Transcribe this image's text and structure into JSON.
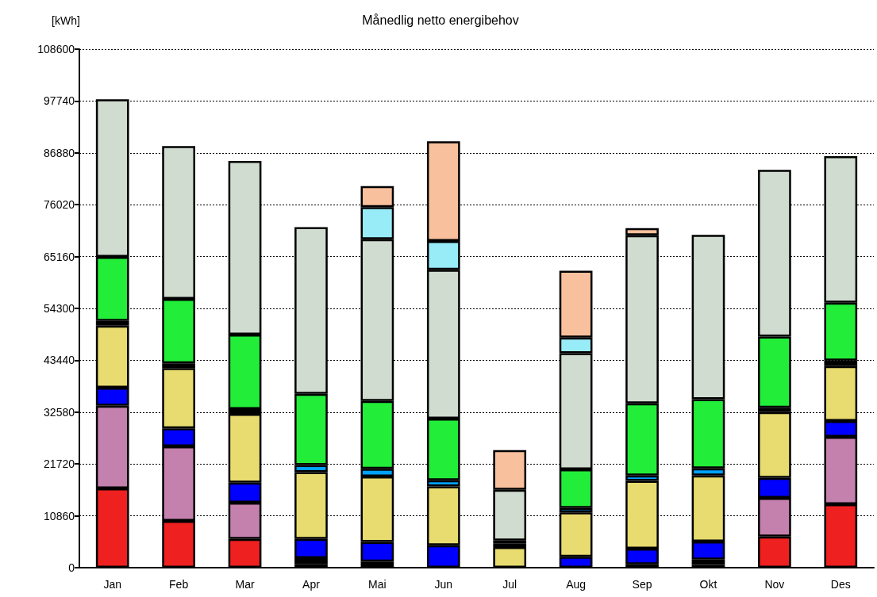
{
  "chart_data": {
    "type": "bar",
    "title": "Månedlig netto energibehov",
    "ylabel": "[kWh]",
    "stacked": true,
    "grid": "y",
    "categories": [
      "Jan",
      "Feb",
      "Mar",
      "Apr",
      "Mai",
      "Jun",
      "Jul",
      "Aug",
      "Sep",
      "Okt",
      "Nov",
      "Des"
    ],
    "ylim": [
      0,
      108600
    ],
    "yticks": [
      0,
      10860,
      21720,
      32580,
      43440,
      54300,
      65160,
      76020,
      86880,
      97740,
      108600
    ],
    "series": [
      {
        "color": "#ef2020",
        "values": [
          16600,
          9800,
          6000,
          700,
          null,
          null,
          null,
          null,
          null,
          600,
          6500,
          13300
        ]
      },
      {
        "color": "#000000",
        "values": [
          null,
          null,
          null,
          1300,
          1300,
          null,
          null,
          null,
          700,
          1100,
          null,
          null
        ]
      },
      {
        "color": "#c481ae",
        "values": [
          17300,
          15600,
          7600,
          null,
          null,
          null,
          null,
          null,
          null,
          null,
          8100,
          14100
        ]
      },
      {
        "color": "#0000ff",
        "values": [
          3800,
          3800,
          4200,
          4000,
          4100,
          4700,
          null,
          2300,
          3300,
          3800,
          4200,
          3300
        ]
      },
      {
        "color": "#e8dc70",
        "values": [
          13000,
          12600,
          14400,
          14000,
          13700,
          12300,
          4300,
          9300,
          14200,
          13800,
          13800,
          11500
        ]
      },
      {
        "color": "#00a0ff",
        "values": [
          null,
          null,
          null,
          1500,
          1600,
          1300,
          800,
          900,
          1100,
          1500,
          null,
          null
        ]
      },
      {
        "color": "#000000",
        "values": [
          1000,
          1000,
          1000,
          null,
          null,
          null,
          600,
          null,
          null,
          null,
          900,
          1200
        ]
      },
      {
        "color": "#22ee3a",
        "values": [
          13400,
          13500,
          15600,
          14900,
          14200,
          12900,
          null,
          8100,
          15100,
          14500,
          14900,
          12100
        ]
      },
      {
        "color": "#d0dcd0",
        "values": [
          33000,
          32000,
          36400,
          34900,
          33900,
          31200,
          10600,
          24300,
          35200,
          34400,
          34900,
          30700
        ]
      },
      {
        "color": "#98ecf8",
        "values": [
          null,
          null,
          null,
          null,
          6700,
          6000,
          null,
          3300,
          null,
          null,
          null,
          null
        ]
      },
      {
        "color": "#f8c09c",
        "values": [
          null,
          null,
          null,
          null,
          4400,
          20900,
          8300,
          14000,
          1500,
          null,
          null,
          null
        ]
      }
    ]
  }
}
